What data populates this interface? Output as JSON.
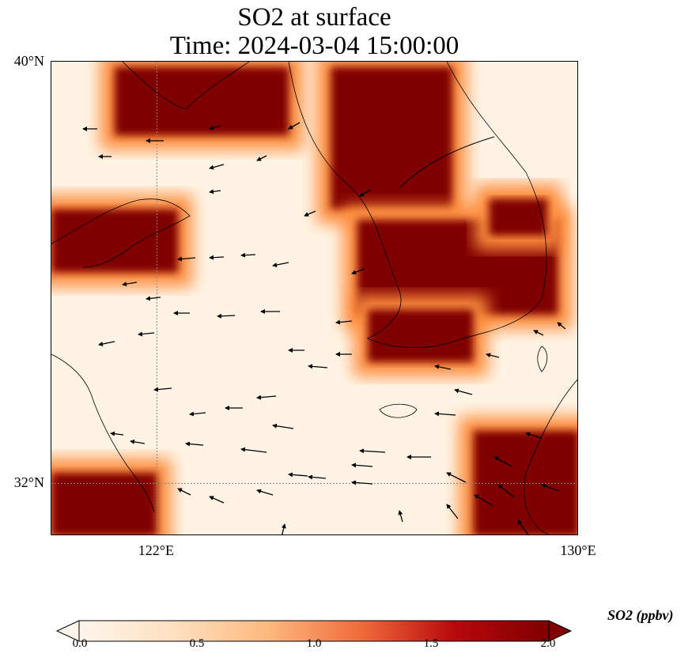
{
  "title": {
    "line1": "SO2 at surface",
    "line2": "Time: 2024-03-04 15:00:00"
  },
  "map": {
    "lat_range": [
      31,
      40
    ],
    "lon_range": [
      120,
      130
    ],
    "lat_ticks": [
      {
        "value": 40,
        "label": "40°N"
      },
      {
        "value": 32,
        "label": "32°N"
      }
    ],
    "lon_ticks": [
      {
        "value": 122,
        "label": "122°E"
      },
      {
        "value": 130,
        "label": "130°E"
      }
    ],
    "gridlines": "dotted at 122°E and 32°N",
    "variable": "SO2",
    "colormap": [
      "#fff5eb",
      "#fdd0a2",
      "#fd8d3c",
      "#d94801",
      "#a50f15",
      "#7f0000"
    ],
    "high_regions": [
      {
        "name": "north-coast",
        "lon": [
          121.2,
          124.5
        ],
        "lat": [
          38.6,
          39.9
        ]
      },
      {
        "name": "west-coast",
        "lon": [
          120.0,
          122.4
        ],
        "lat": [
          36.0,
          37.2
        ]
      },
      {
        "name": "korea-north",
        "lon": [
          125.3,
          127.6
        ],
        "lat": [
          37.2,
          39.9
        ]
      },
      {
        "name": "korea-central",
        "lon": [
          125.8,
          129.6
        ],
        "lat": [
          35.2,
          37.0
        ]
      },
      {
        "name": "korea-south",
        "lon": [
          126.0,
          128.0
        ],
        "lat": [
          34.3,
          35.3
        ]
      },
      {
        "name": "east-coast",
        "lon": [
          128.3,
          129.4
        ],
        "lat": [
          36.7,
          37.4
        ]
      },
      {
        "name": "japan-southeast",
        "lon": [
          128.0,
          130.0
        ],
        "lat": [
          31.0,
          33.0
        ]
      },
      {
        "name": "china-southwest",
        "lon": [
          120.0,
          122.0
        ],
        "lat": [
          31.0,
          32.2
        ]
      }
    ],
    "wind_arrows": "westward surface winds"
  },
  "colorbar": {
    "label": "SO2 (ppbv)",
    "min": 0.0,
    "max": 2.0,
    "extend": "both",
    "ticks": [
      "0.0",
      "0.5",
      "1.0",
      "1.5",
      "2.0"
    ]
  }
}
